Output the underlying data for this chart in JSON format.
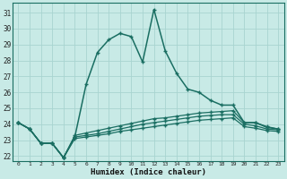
{
  "title": "",
  "xlabel": "Humidex (Indice chaleur)",
  "bg_color": "#c8eae6",
  "grid_color": "#a8d4d0",
  "line_color": "#1a6e62",
  "series": {
    "main": [
      24.1,
      23.7,
      22.8,
      22.8,
      21.9,
      23.2,
      26.5,
      28.5,
      29.3,
      29.7,
      29.5,
      27.9,
      31.2,
      28.6,
      27.2,
      26.2,
      26.0,
      25.5,
      25.2,
      25.2,
      24.1,
      24.1,
      23.8,
      23.7
    ],
    "line2": [
      24.1,
      23.7,
      22.8,
      22.8,
      21.9,
      23.3,
      23.45,
      23.6,
      23.75,
      23.9,
      24.05,
      24.2,
      24.35,
      24.4,
      24.5,
      24.6,
      24.7,
      24.75,
      24.8,
      24.85,
      24.1,
      24.1,
      23.85,
      23.7
    ],
    "line3": [
      24.1,
      23.7,
      22.8,
      22.8,
      21.9,
      23.2,
      23.3,
      23.4,
      23.55,
      23.7,
      23.85,
      24.0,
      24.1,
      24.2,
      24.3,
      24.4,
      24.5,
      24.55,
      24.6,
      24.6,
      24.0,
      23.9,
      23.7,
      23.65
    ],
    "line4": [
      24.1,
      23.7,
      22.8,
      22.8,
      21.9,
      23.1,
      23.2,
      23.3,
      23.4,
      23.55,
      23.65,
      23.75,
      23.85,
      23.95,
      24.05,
      24.15,
      24.25,
      24.3,
      24.35,
      24.4,
      23.85,
      23.75,
      23.6,
      23.55
    ]
  },
  "x_values": [
    0,
    1,
    2,
    3,
    4,
    5,
    6,
    7,
    8,
    9,
    10,
    11,
    12,
    13,
    14,
    15,
    16,
    17,
    18,
    19,
    20,
    21,
    22,
    23
  ],
  "ylim": [
    21.7,
    31.6
  ],
  "yticks": [
    22,
    23,
    24,
    25,
    26,
    27,
    28,
    29,
    30,
    31
  ],
  "xtick_labels": [
    "0",
    "1",
    "2",
    "3",
    "4",
    "5",
    "6",
    "7",
    "8",
    "9",
    "10",
    "11",
    "12",
    "13",
    "14",
    "15",
    "16",
    "17",
    "18",
    "19",
    "20",
    "21",
    "22",
    "23"
  ]
}
